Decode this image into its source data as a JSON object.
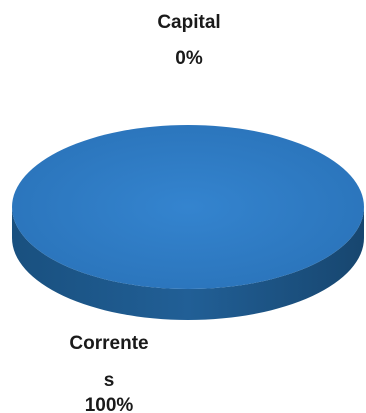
{
  "chart_data": {
    "type": "pie",
    "categories": [
      "Capital",
      "Correntes"
    ],
    "values": [
      0,
      100
    ],
    "slices": [
      {
        "label_lines": [
          "Capital"
        ],
        "percent_label": "0%",
        "value": 0,
        "color": "#2e7ac4"
      },
      {
        "label_lines": [
          "Corrente",
          "s"
        ],
        "percent_label": "100%",
        "value": 100,
        "color": "#2e7ac4"
      }
    ],
    "style": "3d",
    "legend": "none",
    "colors": {
      "top": "#2e7ac4",
      "side": "#1f5b94"
    }
  }
}
